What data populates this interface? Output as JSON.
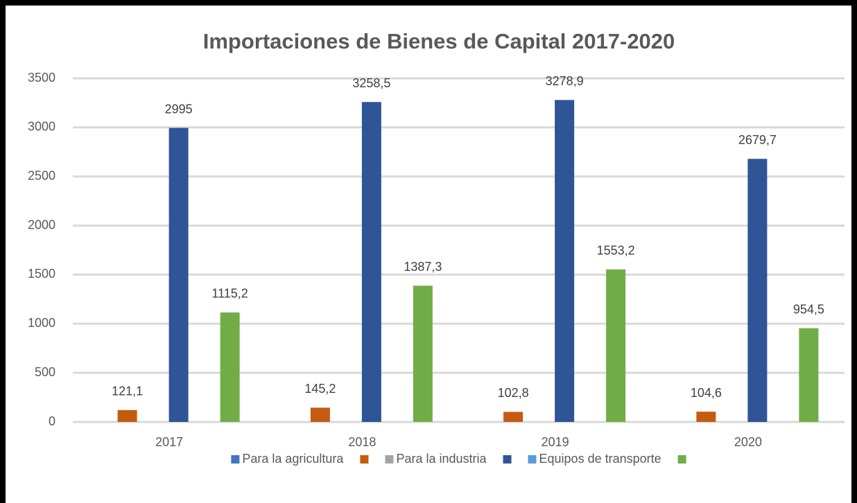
{
  "chart_data": {
    "type": "bar",
    "title": "Importaciones de Bienes de Capital 2017-2020",
    "categories": [
      "2017",
      "2018",
      "2019",
      "2020"
    ],
    "series": [
      {
        "name": "Para la agricultura",
        "color": "#4472c4",
        "values": [
          null,
          null,
          null,
          null
        ]
      },
      {
        "name": null,
        "color": "#c55a11",
        "values": [
          121.1,
          145.2,
          102.8,
          104.6
        ],
        "value_labels": [
          "121,1",
          "145,2",
          "102,8",
          "104,6"
        ]
      },
      {
        "name": "Para la industria",
        "color": "#a5a5a5",
        "values": [
          null,
          null,
          null,
          null
        ]
      },
      {
        "name": null,
        "color": "#2f5597",
        "values": [
          2995,
          3258.5,
          3278.9,
          2679.7
        ],
        "value_labels": [
          "2995",
          "3258,5",
          "3278,9",
          "2679,7"
        ]
      },
      {
        "name": "Equipos de transporte",
        "color": "#5b9bd5",
        "values": [
          null,
          null,
          null,
          null
        ]
      },
      {
        "name": null,
        "color": "#70ad47",
        "values": [
          1115.2,
          1387.3,
          1553.2,
          954.5
        ],
        "value_labels": [
          "1115,2",
          "1387,3",
          "1553,2",
          "954,5"
        ]
      }
    ],
    "ylim": [
      0,
      3500
    ],
    "yticks": [
      0,
      500,
      1000,
      1500,
      2000,
      2500,
      3000,
      3500
    ],
    "grid": true,
    "legend": "bottom"
  }
}
